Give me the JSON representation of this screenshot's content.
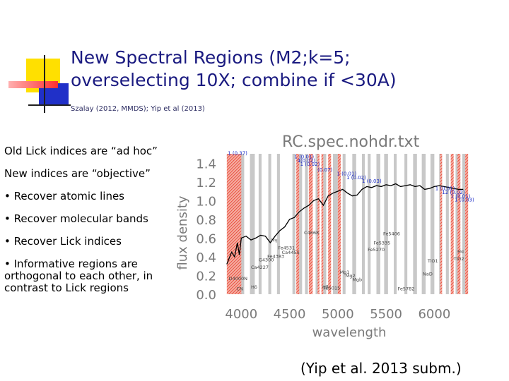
{
  "slide": {
    "title_line1": "New Spectral Regions (M2;k=5;",
    "title_line2": "overselecting 10X; combine if <30A)",
    "subtitle": "Szalay (2012, MMDS); Yip et al (2013)",
    "paragraphs": [
      "Old Lick indices are “ad hoc”",
      "New indices are “objective”",
      "• Recover atomic lines",
      "• Recover molecular bands",
      "• Recover Lick indices",
      "• Informative regions are orthogonal to each other, in contrast to Lick regions"
    ],
    "citation": "(Yip et al. 2013 subm.)"
  },
  "colors": {
    "title": "#1a1a80",
    "deco_yellow": "#ffe000",
    "deco_blue": "#2030c8",
    "deco_red": "#ff3030",
    "band_gray": "#c8c8c8",
    "band_red": "#e83020"
  },
  "chart_data": {
    "type": "line",
    "title": "RC.spec.nohdr.txt",
    "xlabel": "wavelength",
    "ylabel": "flux density",
    "xlim": [
      3800,
      6400
    ],
    "ylim": [
      0,
      1.5
    ],
    "xticks": [
      "4000",
      "4500",
      "5000",
      "5500",
      "6000"
    ],
    "yticks": [
      "0.0",
      "0.2",
      "0.4",
      "0.6",
      "0.8",
      "1.0",
      "1.2",
      "1.4"
    ],
    "series": [
      {
        "x": [
          3850,
          3900,
          3930,
          3960,
          3980,
          4000,
          4050,
          4100,
          4150,
          4200,
          4250,
          4300,
          4350,
          4400,
          4450,
          4500,
          4550,
          4600,
          4650,
          4700,
          4750,
          4800,
          4850,
          4900,
          4950,
          5000,
          5050,
          5100,
          5150,
          5200,
          5250,
          5300,
          5350,
          5400,
          5450,
          5500,
          5550,
          5600,
          5650,
          5700,
          5750,
          5800,
          5850,
          5900,
          5950,
          6000,
          6050,
          6100,
          6150,
          6200,
          6250,
          6300
        ],
        "y": [
          0.32,
          0.45,
          0.4,
          0.55,
          0.42,
          0.6,
          0.62,
          0.58,
          0.6,
          0.63,
          0.62,
          0.55,
          0.62,
          0.68,
          0.72,
          0.8,
          0.82,
          0.88,
          0.92,
          0.95,
          1.0,
          1.02,
          0.95,
          1.05,
          1.08,
          1.1,
          1.12,
          1.08,
          1.05,
          1.06,
          1.12,
          1.15,
          1.14,
          1.16,
          1.15,
          1.17,
          1.16,
          1.18,
          1.15,
          1.16,
          1.17,
          1.15,
          1.16,
          1.12,
          1.13,
          1.15,
          1.16,
          1.15,
          1.14,
          1.13,
          1.12,
          1.12
        ]
      }
    ],
    "gray_bands": [
      [
        3880,
        3930
      ],
      [
        3990,
        4030
      ],
      [
        4090,
        4140
      ],
      [
        4180,
        4210
      ],
      [
        4280,
        4310
      ],
      [
        4370,
        4400
      ],
      [
        4530,
        4560
      ],
      [
        4600,
        4630
      ],
      [
        4660,
        4690
      ],
      [
        4770,
        4800
      ],
      [
        4850,
        4880
      ],
      [
        4950,
        5000
      ],
      [
        5050,
        5080
      ],
      [
        5150,
        5190
      ],
      [
        5250,
        5280
      ],
      [
        5310,
        5340
      ],
      [
        5400,
        5440
      ],
      [
        5480,
        5520
      ],
      [
        5580,
        5610
      ],
      [
        5690,
        5720
      ],
      [
        5780,
        5820
      ],
      [
        5870,
        5910
      ],
      [
        5960,
        6000
      ],
      [
        6050,
        6080
      ],
      [
        6120,
        6150
      ],
      [
        6220,
        6250
      ],
      [
        6290,
        6320
      ]
    ],
    "red_bands": [
      [
        3850,
        4000
      ],
      [
        4570,
        4600
      ],
      [
        4700,
        4740
      ],
      [
        4790,
        4810
      ],
      [
        4830,
        4850
      ],
      [
        4900,
        4930
      ],
      [
        5000,
        5030
      ],
      [
        6060,
        6080
      ],
      [
        6170,
        6200
      ],
      [
        6240,
        6270
      ],
      [
        6320,
        6350
      ]
    ],
    "annotations": [
      {
        "text": "1 (0.37)",
        "x": 3860,
        "y": 1.49
      },
      {
        "text": "1 (0.01)",
        "x": 4550,
        "y": 1.45
      },
      {
        "text": "4(0.02)",
        "x": 4580,
        "y": 1.41
      },
      {
        "text": "1 (0.02)",
        "x": 4610,
        "y": 1.37
      },
      {
        "text": "(0.07)",
        "x": 4790,
        "y": 1.31
      },
      {
        "text": "1 (0.01)",
        "x": 4990,
        "y": 1.27
      },
      {
        "text": "1 (0.02)",
        "x": 5090,
        "y": 1.23
      },
      {
        "text": "1 (0.03)",
        "x": 5250,
        "y": 1.19
      },
      {
        "text": "1 (0.01)",
        "x": 6010,
        "y": 1.11
      },
      {
        "text": "12 (0.02)",
        "x": 6080,
        "y": 1.07
      },
      {
        "text": "1 (0.01)",
        "x": 6170,
        "y": 1.03
      },
      {
        "text": "1 (0.03)",
        "x": 6210,
        "y": 0.99
      },
      {
        "text": "Ca4227",
        "x": 4100,
        "y": 0.27
      },
      {
        "text": "Fe5406",
        "x": 5470,
        "y": 0.63
      },
      {
        "text": "Fe5335",
        "x": 5370,
        "y": 0.53
      },
      {
        "text": "Fe5270",
        "x": 5310,
        "y": 0.46
      },
      {
        "text": "Fe4531",
        "x": 4380,
        "y": 0.48
      },
      {
        "text": "Fe4383",
        "x": 4270,
        "y": 0.39
      },
      {
        "text": "C4668",
        "x": 4650,
        "y": 0.64
      },
      {
        "text": "Fe5015",
        "x": 4850,
        "y": 0.05
      },
      {
        "text": "Fe5782",
        "x": 5620,
        "y": 0.04
      },
      {
        "text": "NaD",
        "x": 5880,
        "y": 0.2
      },
      {
        "text": "Hβ",
        "x": 4840,
        "y": 0.06
      },
      {
        "text": "Mg1",
        "x": 5020,
        "y": 0.22
      },
      {
        "text": "Mg2",
        "x": 5080,
        "y": 0.18
      },
      {
        "text": "Mgb",
        "x": 5150,
        "y": 0.14
      },
      {
        "text": "D4000N",
        "x": 3870,
        "y": 0.15
      },
      {
        "text": "CN",
        "x": 3950,
        "y": 0.04
      },
      {
        "text": "Hδ",
        "x": 4100,
        "y": 0.06
      },
      {
        "text": "Hγ",
        "x": 4310,
        "y": 0.56
      },
      {
        "text": "G4300",
        "x": 4180,
        "y": 0.35
      },
      {
        "text": "Ca4455",
        "x": 4420,
        "y": 0.43
      },
      {
        "text": "TiO1",
        "x": 5930,
        "y": 0.34
      },
      {
        "text": "TiO2",
        "x": 6200,
        "y": 0.36
      },
      {
        "text": "Hα",
        "x": 6240,
        "y": 0.44
      }
    ]
  }
}
